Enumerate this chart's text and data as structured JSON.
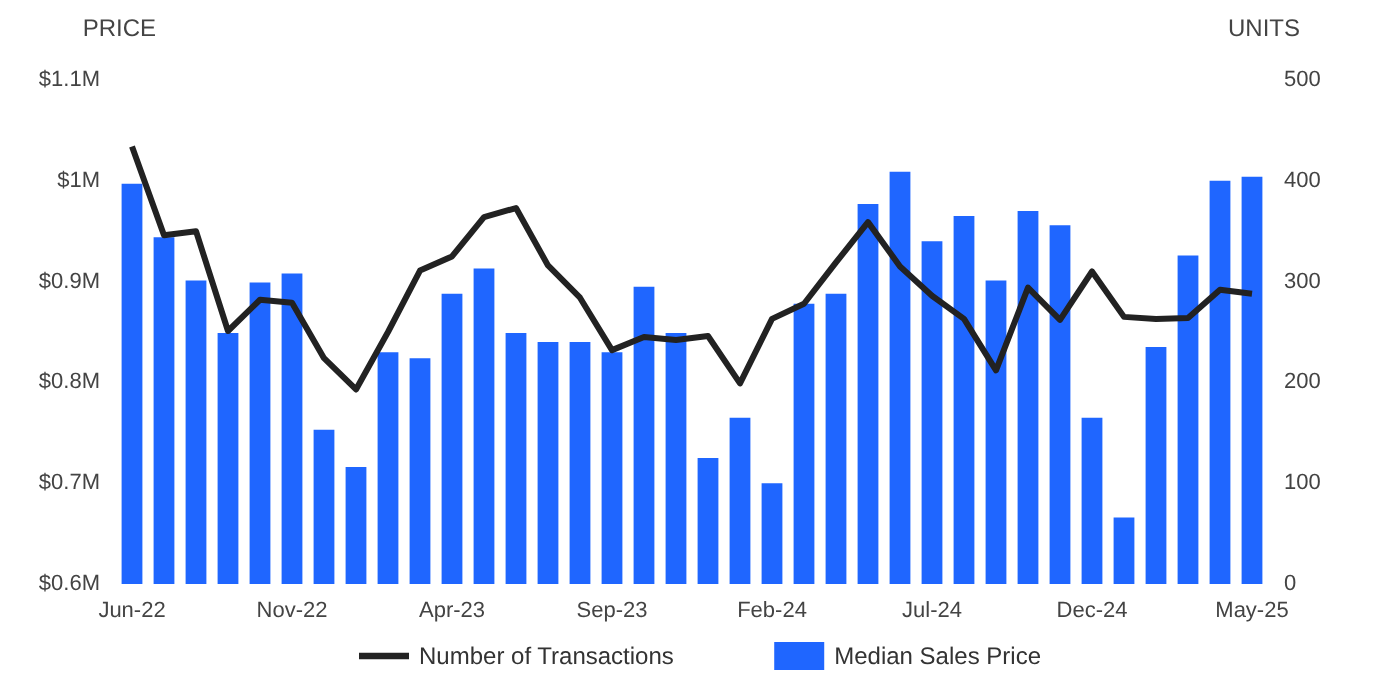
{
  "chart_data": {
    "type": "bar",
    "ylabel": "PRICE",
    "y2label": "UNITS",
    "categories": [
      "Jun-22",
      null,
      null,
      null,
      null,
      "Nov-22",
      null,
      null,
      null,
      null,
      "Apr-23",
      null,
      null,
      null,
      null,
      "Sep-23",
      null,
      null,
      null,
      null,
      "Feb-24",
      null,
      null,
      null,
      null,
      "Jul-24",
      null,
      null,
      null,
      null,
      "Dec-24",
      null,
      null,
      null,
      null,
      "May-25"
    ],
    "series": [
      {
        "name": "Number of Transactions",
        "type": "line",
        "axis": "y2",
        "color": "#222222",
        "values": [
          434,
          346,
          350,
          251,
          282,
          279,
          224,
          193,
          250,
          311,
          325,
          364,
          373,
          316,
          284,
          232,
          245,
          242,
          246,
          199,
          263,
          278,
          319,
          359,
          315,
          286,
          263,
          212,
          294,
          262,
          310,
          265,
          263,
          264,
          292,
          288
        ]
      },
      {
        "name": "Median Sales Price",
        "color": "#1f66ff",
        "values": [
          0.997,
          0.944,
          0.901,
          0.849,
          0.899,
          0.908,
          0.753,
          0.716,
          0.83,
          0.824,
          0.888,
          0.913,
          0.849,
          0.84,
          0.84,
          0.83,
          0.895,
          0.849,
          0.725,
          0.765,
          0.7,
          0.878,
          0.888,
          0.977,
          1.009,
          0.94,
          0.965,
          0.901,
          0.97,
          0.956,
          0.765,
          0.666,
          0.835,
          0.926,
          1.0,
          1.004
        ]
      }
    ],
    "ylim": [
      0.6,
      1.1
    ],
    "yticks": [
      {
        "value": 0.6,
        "label": "$0.6M"
      },
      {
        "value": 0.7,
        "label": "$0.7M"
      },
      {
        "value": 0.8,
        "label": "$0.8M"
      },
      {
        "value": 0.9,
        "label": "$0.9M"
      },
      {
        "value": 1.0,
        "label": "$1M"
      },
      {
        "value": 1.1,
        "label": "$1.1M"
      }
    ],
    "y2lim": [
      0,
      500
    ],
    "y2ticks": [
      0,
      100,
      200,
      300,
      400,
      500
    ],
    "legend": "bottom",
    "marker": "none",
    "line_style": "solid"
  }
}
